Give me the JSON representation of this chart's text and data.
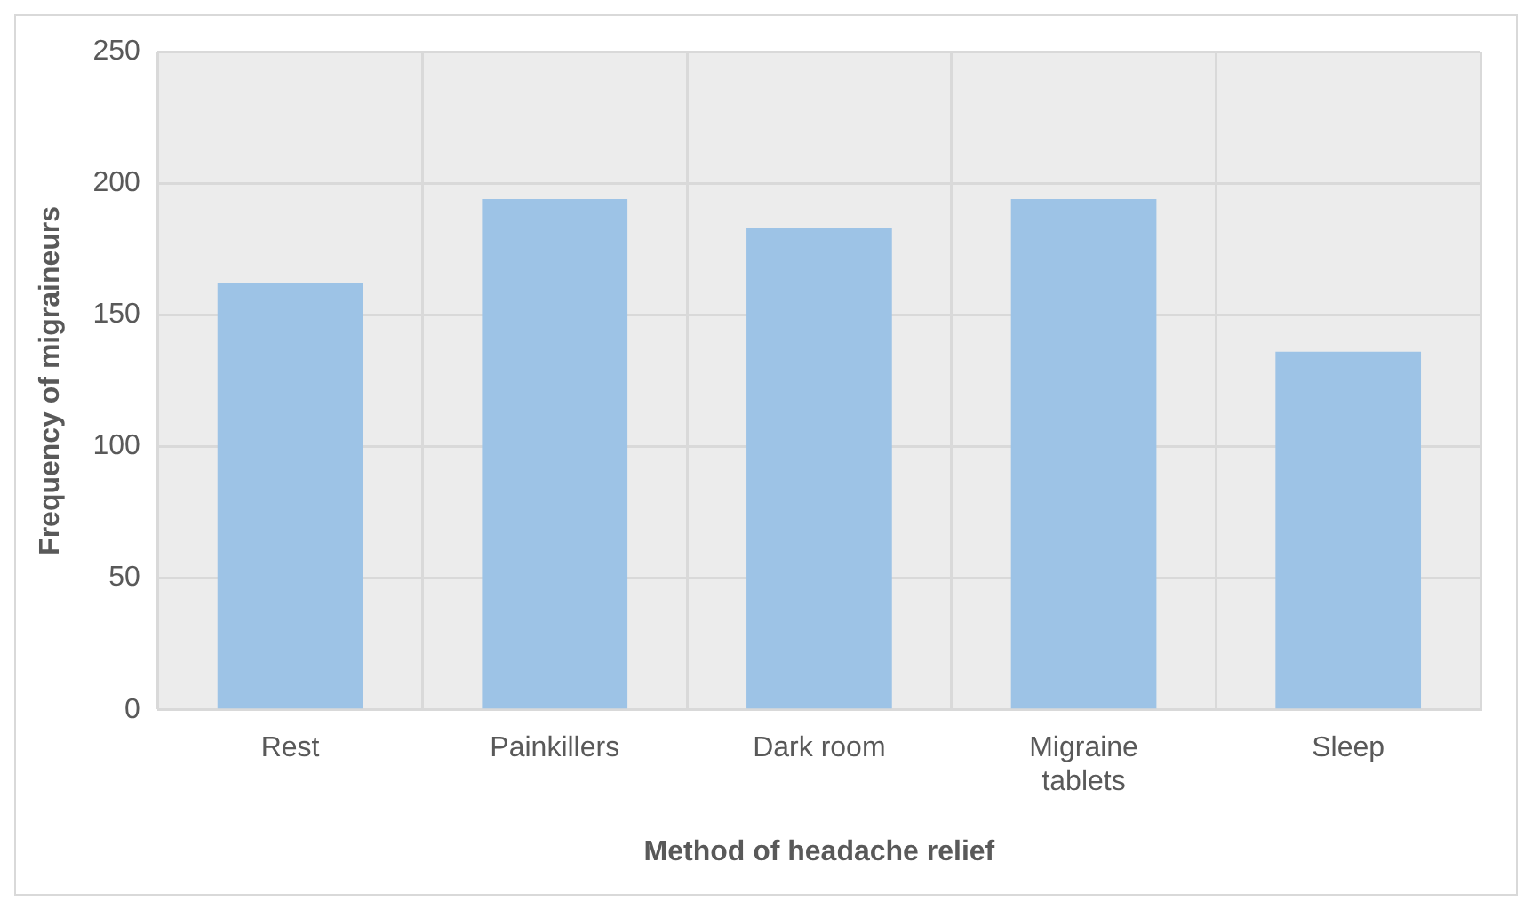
{
  "chart_data": {
    "type": "bar",
    "xlabel": "Method of headache relief",
    "ylabel": "Frequency of migraineurs",
    "categories": [
      "Rest",
      "Painkillers",
      "Dark room",
      "Migraine tablets",
      "Sleep"
    ],
    "values": [
      162,
      194,
      183,
      194,
      136
    ],
    "color": "#9dc3e6",
    "ylim": [
      0,
      250
    ],
    "yticks": [
      0,
      50,
      100,
      150,
      200,
      250
    ],
    "grid": true
  }
}
